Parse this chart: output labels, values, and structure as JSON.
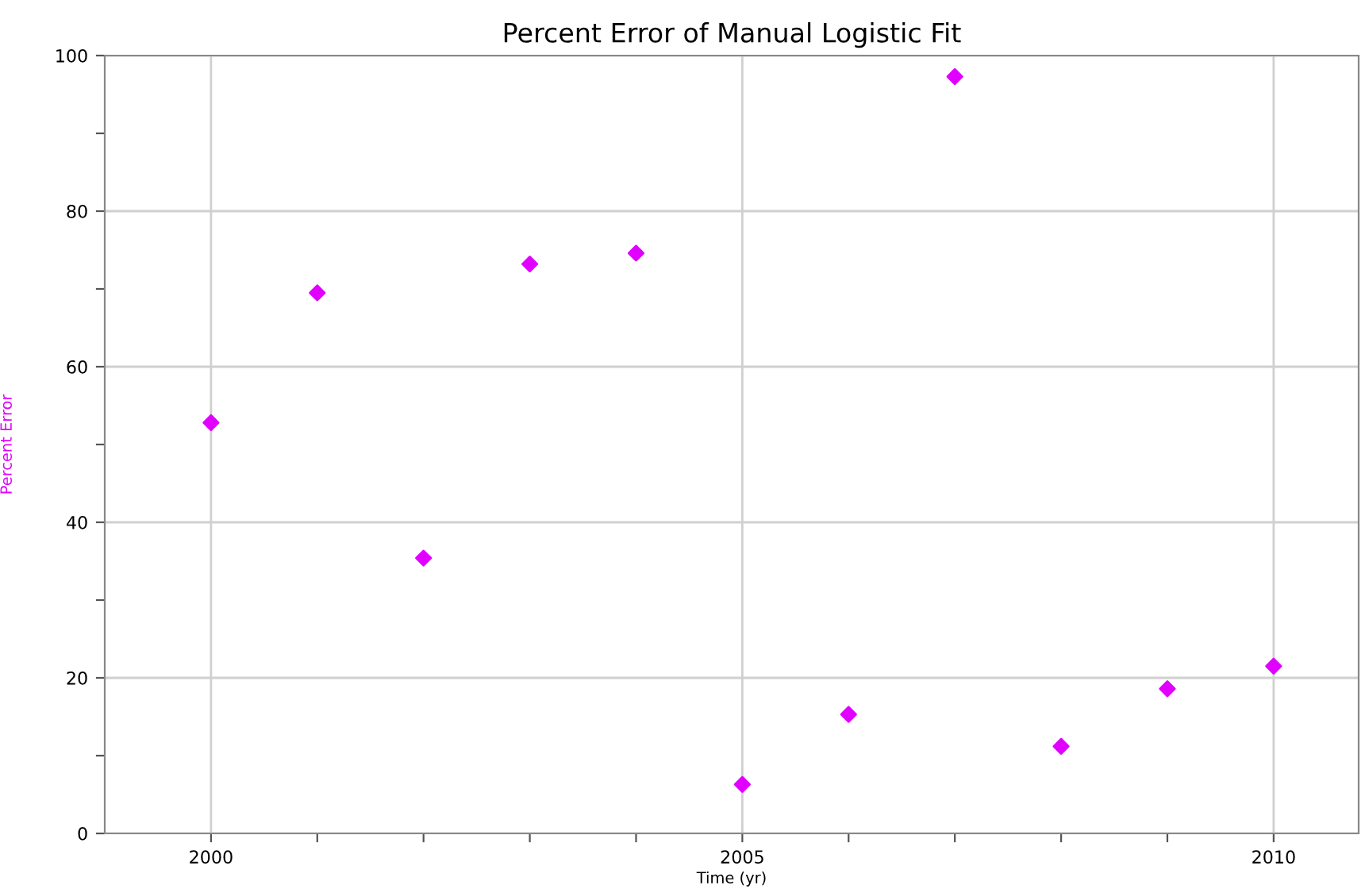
{
  "chart_data": {
    "type": "scatter",
    "title": "Percent Error of Manual Logistic Fit",
    "xlabel": "Time (yr)",
    "ylabel": "Percent Error",
    "x": [
      2000,
      2001,
      2002,
      2003,
      2004,
      2005,
      2006,
      2007,
      2008,
      2009,
      2010
    ],
    "series": [
      {
        "color": "#e100ff",
        "values": [
          52.8,
          69.5,
          35.4,
          73.2,
          74.6,
          6.3,
          15.3,
          97.3,
          11.2,
          18.6,
          21.5
        ]
      }
    ],
    "xlim": [
      1999,
      2010.8
    ],
    "ylim": [
      0,
      100
    ],
    "xticks": [
      2000,
      {
        "value": 2001,
        "label": null
      },
      {
        "value": 2002,
        "label": null
      },
      {
        "value": 2003,
        "label": null
      },
      {
        "value": 2004,
        "label": null
      },
      2005,
      {
        "value": 2006,
        "label": null
      },
      {
        "value": 2007,
        "label": null
      },
      {
        "value": 2008,
        "label": null
      },
      {
        "value": 2009,
        "label": null
      },
      2010
    ],
    "yticks": [
      0,
      {
        "value": 10,
        "label": null
      },
      20,
      {
        "value": 30,
        "label": null
      },
      40,
      {
        "value": 50,
        "label": null
      },
      60,
      {
        "value": 70,
        "label": null
      },
      80,
      {
        "value": 90,
        "label": null
      },
      100
    ],
    "grid": true,
    "marker": "diamond",
    "legend": false
  }
}
